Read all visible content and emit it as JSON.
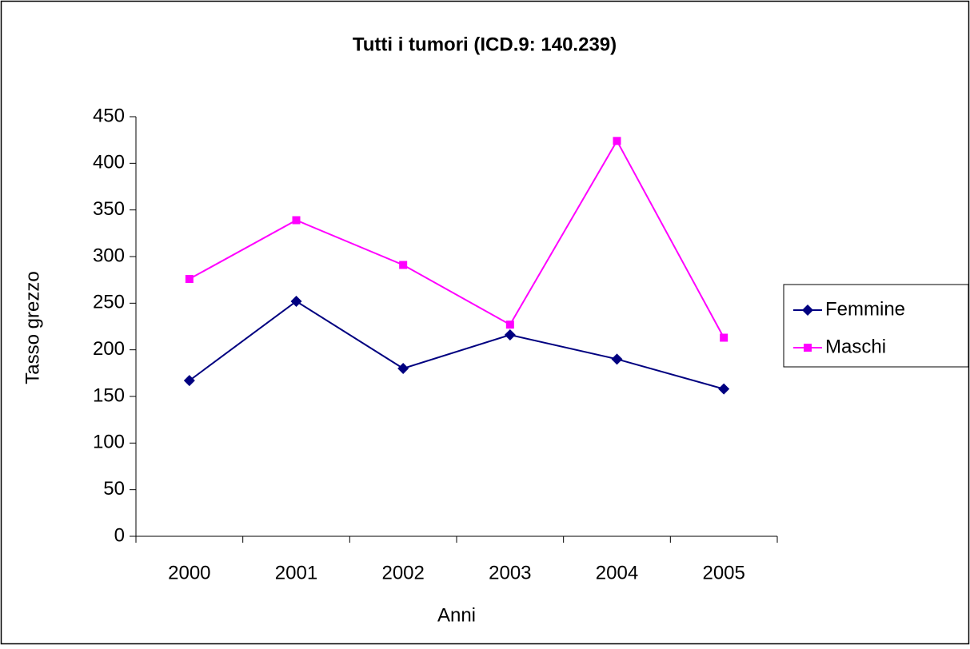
{
  "chart_data": {
    "type": "line",
    "title": "Tutti i tumori (ICD.9: 140.239)",
    "x_label": "Anni",
    "y_label": "Tasso grezzo",
    "categories": [
      "2000",
      "2001",
      "2002",
      "2003",
      "2004",
      "2005"
    ],
    "series": [
      {
        "name": "Femmine",
        "color": "#000080",
        "marker": "diamond",
        "values": [
          167,
          252,
          180,
          216,
          190,
          158
        ]
      },
      {
        "name": "Maschi",
        "color": "#ff00ff",
        "marker": "square",
        "values": [
          276,
          339,
          291,
          227,
          424,
          213
        ]
      }
    ],
    "ylim": [
      0,
      450
    ],
    "yticks": [
      0,
      50,
      100,
      150,
      200,
      250,
      300,
      350,
      400,
      450
    ],
    "grid": false,
    "legend": "right"
  }
}
